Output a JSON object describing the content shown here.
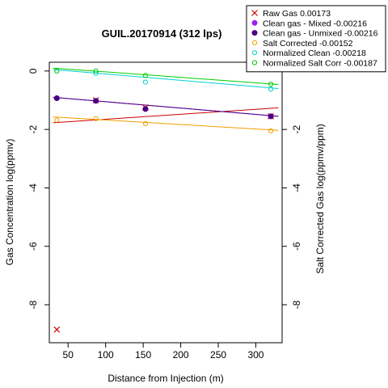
{
  "chart_data": {
    "type": "scatter",
    "title": "GUIL.20170914 (312 lps)",
    "xlabel": "Distance from Injection (m)",
    "ylabel": "Gas Concentration log(ppmv)",
    "ylabel_right": "Salt Corrected Gas log(ppmv/ppm)",
    "xlim": [
      25,
      335
    ],
    "ylim": [
      -9.3,
      0.3
    ],
    "x_ticks": [
      50,
      100,
      150,
      200,
      250,
      300
    ],
    "y_ticks": [
      0,
      -2,
      -4,
      -6,
      -8
    ],
    "y_ticks_right": [
      -2,
      -4,
      -6,
      -8
    ],
    "grid": false,
    "legend_position": "top-right",
    "series": [
      {
        "name": "Raw Gas 0.00173",
        "color": "#cc0000",
        "marker": "x",
        "x": [
          35,
          87,
          153,
          320
        ],
        "y": [
          -8.85,
          -1.0,
          -1.25,
          -1.55
        ],
        "fit": {
          "x": [
            30,
            330
          ],
          "y": [
            -1.77,
            -1.26
          ]
        }
      },
      {
        "name": "Clean gas - Mixed -0.00216",
        "color": "#a020f0",
        "marker": "dot",
        "x": [
          35,
          87,
          153,
          320
        ],
        "y": [
          -0.93,
          -1.02,
          -1.3,
          -1.55
        ],
        "fit": {
          "x": [
            30,
            330
          ],
          "y": [
            -0.9,
            -1.55
          ]
        }
      },
      {
        "name": "Clean gas - Unmixed -0.00216",
        "color": "#4b0082",
        "marker": "dot",
        "x": [
          35,
          87,
          153,
          320
        ],
        "y": [
          -0.93,
          -1.02,
          -1.3,
          -1.55
        ],
        "fit": {
          "x": [
            30,
            330
          ],
          "y": [
            -0.9,
            -1.55
          ]
        }
      },
      {
        "name": "Salt Corrected -0.00152",
        "color": "#f0a000",
        "marker": "circle",
        "x": [
          35,
          87,
          153,
          320
        ],
        "y": [
          -1.68,
          -1.63,
          -1.8,
          -2.05
        ],
        "fit": {
          "x": [
            30,
            330
          ],
          "y": [
            -1.57,
            -2.03
          ]
        }
      },
      {
        "name": "Normalized Clean -0.00218",
        "color": "#00d0d0",
        "marker": "circle",
        "x": [
          35,
          87,
          153,
          320
        ],
        "y": [
          0.0,
          -0.08,
          -0.38,
          -0.62
        ],
        "fit": {
          "x": [
            30,
            330
          ],
          "y": [
            0.05,
            -0.6
          ]
        }
      },
      {
        "name": "Normalized Salt Corr -0.00187",
        "color": "#00cc00",
        "marker": "circle",
        "x": [
          35,
          87,
          153,
          320
        ],
        "y": [
          0.0,
          0.0,
          -0.15,
          -0.45
        ],
        "fit": {
          "x": [
            30,
            330
          ],
          "y": [
            0.1,
            -0.46
          ]
        }
      }
    ]
  }
}
